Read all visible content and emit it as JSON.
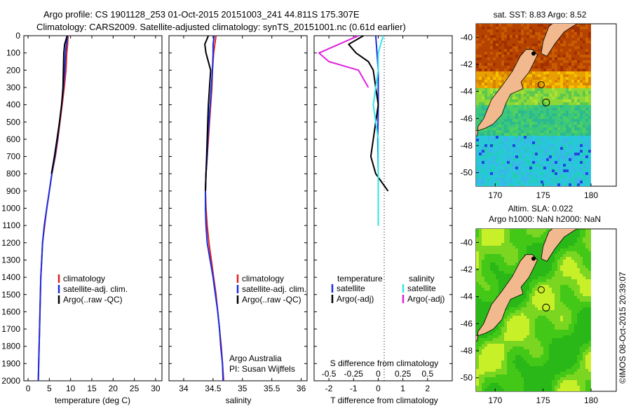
{
  "header": {
    "line1": "Argo profile: CS 1901128_253 01-Oct-2015 20151003_241 44.811S 175.307E",
    "line2": "Climatology: CARS2009. Satellite-adjusted climatology: synTS_20151001.nc (0.61d earlier)"
  },
  "colors": {
    "climatology": "#e02020",
    "satellite": "#1a2ee0",
    "argo": "#000000",
    "satellite_s": "#33e6e6",
    "argo_s": "#e020e0",
    "land": "#f2b98f"
  },
  "chart_data": [
    {
      "type": "line",
      "xlabel": "temperature (deg C)",
      "ylabel": "",
      "xlim": [
        -1,
        31.5
      ],
      "ylim": [
        2000,
        0
      ],
      "xticks": [
        0,
        5,
        10,
        15,
        20,
        25,
        30
      ],
      "yticks": [
        0,
        100,
        200,
        300,
        400,
        500,
        600,
        700,
        800,
        900,
        1000,
        1100,
        1200,
        1300,
        1400,
        1500,
        1600,
        1700,
        1800,
        1900,
        2000
      ],
      "legend": [
        "climatology",
        "satellite-adj. clim.",
        "Argo(..raw -QC)"
      ],
      "series": [
        {
          "name": "climatology",
          "depth": [
            0,
            50,
            100,
            200,
            300,
            400,
            500,
            600,
            700,
            800,
            900,
            1000,
            1100,
            1200,
            1300,
            1400,
            1500,
            1600,
            1700,
            1800,
            1900,
            2000
          ],
          "values": [
            9.4,
            9.3,
            9.1,
            8.9,
            8.5,
            8.0,
            7.5,
            7.0,
            6.4,
            5.6,
            5.0,
            4.4,
            3.9,
            3.4,
            3.2,
            3.0,
            2.9,
            2.8,
            2.7,
            2.6,
            2.5,
            2.4
          ]
        },
        {
          "name": "satellite-adj. clim.",
          "depth": [
            0,
            50,
            100,
            200,
            300,
            400,
            500,
            600,
            700,
            800,
            900,
            1000,
            1100,
            1200,
            1300,
            1400,
            1500,
            1600,
            1700,
            1800,
            1900,
            2000
          ],
          "values": [
            9.3,
            9.0,
            8.8,
            8.6,
            8.3,
            7.9,
            7.4,
            6.9,
            6.3,
            5.6,
            5.0,
            4.4,
            3.8,
            3.4,
            3.2,
            3.0,
            2.9,
            2.8,
            2.7,
            2.6,
            2.5,
            2.4
          ]
        },
        {
          "name": "Argo(..raw -QC)",
          "depth": [
            0,
            50,
            100,
            200,
            300,
            400,
            500,
            600,
            700,
            800
          ],
          "values": [
            9.2,
            8.6,
            8.4,
            8.3,
            8.2,
            7.9,
            7.4,
            6.8,
            6.2,
            5.5
          ]
        }
      ]
    },
    {
      "type": "line",
      "xlabel": "salinity",
      "ylabel": "",
      "xlim": [
        33.75,
        36.1
      ],
      "ylim": [
        2000,
        0
      ],
      "xticks": [
        34,
        34.5,
        35,
        35.5,
        36
      ],
      "legend": [
        "climatology",
        "satellite-adj. clim.",
        "Argo(..raw -QC)"
      ],
      "annotation": [
        "Argo Australia",
        "PI: Susan Wijffels"
      ],
      "series": [
        {
          "name": "climatology",
          "depth": [
            0,
            50,
            100,
            200,
            300,
            400,
            500,
            600,
            700,
            800,
            900,
            1000,
            1100,
            1200,
            1300,
            1400,
            1500,
            1600,
            1700,
            1800,
            1900,
            2000
          ],
          "values": [
            34.55,
            34.53,
            34.51,
            34.49,
            34.48,
            34.46,
            34.44,
            34.42,
            34.4,
            34.38,
            34.37,
            34.38,
            34.4,
            34.43,
            34.47,
            34.51,
            34.55,
            34.58,
            34.61,
            34.64,
            34.66,
            34.68
          ]
        },
        {
          "name": "satellite-adj. clim.",
          "depth": [
            0,
            50,
            100,
            200,
            300,
            400,
            500,
            600,
            700,
            800,
            900,
            1000,
            1100,
            1200,
            1300,
            1400,
            1500,
            1600,
            1700,
            1800,
            1900,
            2000
          ],
          "values": [
            34.52,
            34.5,
            34.5,
            34.49,
            34.47,
            34.45,
            34.43,
            34.41,
            34.4,
            34.38,
            34.37,
            34.37,
            34.38,
            34.4,
            34.45,
            34.5,
            34.54,
            34.58,
            34.61,
            34.63,
            34.66,
            34.67
          ]
        },
        {
          "name": "Argo(..raw -QC)",
          "depth": [
            0,
            50,
            100,
            200,
            300,
            400,
            500,
            600,
            700,
            800,
            900
          ],
          "values": [
            34.42,
            34.36,
            34.38,
            34.46,
            34.44,
            34.42,
            34.41,
            34.4,
            34.39,
            34.38,
            34.37
          ]
        }
      ]
    },
    {
      "type": "line",
      "xlabel": "T difference from climatology",
      "xlabel_top": "S difference from climatology",
      "xlim": [
        -2.6,
        3.0
      ],
      "xticks": [
        -2,
        -1,
        0,
        1,
        2
      ],
      "xticks_s": [
        -0.5,
        -0.25,
        0,
        0.25,
        0.5
      ],
      "ylim": [
        2000,
        0
      ],
      "legend_title_t": "temperature",
      "legend_title_s": "salinity",
      "legend": [
        "satellite",
        "Argo(-adj)",
        "satellite",
        "Argo(-adj)"
      ],
      "series": [
        {
          "name": "satellite",
          "depth": [
            0,
            100,
            200,
            400,
            600,
            800,
            1000,
            1100
          ],
          "values": [
            -0.1,
            -0.05,
            0.0,
            0.0,
            -0.02,
            0.0,
            0.0,
            0.0
          ]
        },
        {
          "name": "Argo(-adj)",
          "depth": [
            0,
            50,
            100,
            150,
            200,
            300,
            400,
            500,
            600,
            700,
            800,
            900
          ],
          "values": [
            -0.6,
            -1.2,
            -0.9,
            -0.4,
            -0.2,
            -0.1,
            0.0,
            -0.1,
            -0.2,
            -0.3,
            -0.1,
            0.4
          ]
        },
        {
          "name": "satellite",
          "depth": [
            0,
            100,
            200,
            400,
            600,
            800,
            1000,
            1100
          ],
          "values": [
            0.05,
            0.0,
            0.0,
            -0.05,
            0.0,
            0.0,
            0.0,
            0.0
          ]
        },
        {
          "name": "Argo(-adj)",
          "depth": [
            0,
            50,
            100,
            150,
            200,
            300
          ],
          "values": [
            -0.2,
            -0.4,
            -0.6,
            -0.5,
            -0.2,
            -0.1
          ]
        }
      ]
    },
    {
      "type": "heatmap",
      "title": "sat. SST: 8.83 Argo: 8.52",
      "xticks": [
        170,
        175,
        180
      ],
      "yticks": [
        -40,
        -42,
        -44,
        -46,
        -48,
        -50
      ],
      "xlim": [
        168,
        180
      ],
      "ylim": [
        -51,
        -39
      ]
    },
    {
      "type": "heatmap",
      "title_line1": "Altim. SLA: 0.022",
      "title_line2": "Argo h1000: NaN h2000: NaN",
      "xticks": [
        170,
        175,
        180
      ],
      "yticks": [
        -40,
        -42,
        -44,
        -46,
        -48,
        -50
      ],
      "xlim": [
        168,
        180
      ],
      "ylim": [
        -51,
        -39
      ]
    }
  ],
  "timestamp": "©IMOS 08-Oct-2015 20:39:07"
}
